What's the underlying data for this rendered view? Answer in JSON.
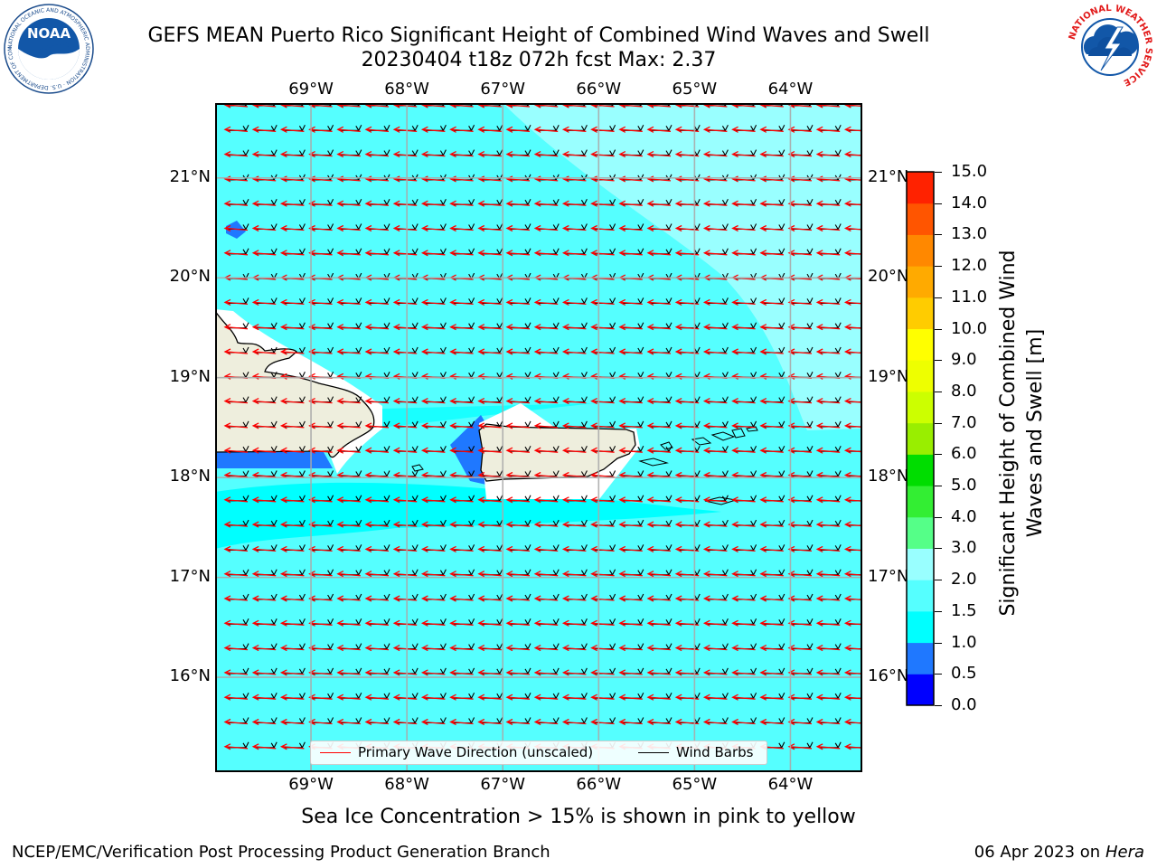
{
  "title": {
    "line1": "GEFS MEAN Puerto Rico Significant Height of Combined Wind Waves and Swell",
    "line2": "20230404 t18z 072h fcst   Max: 2.37"
  },
  "map": {
    "lon_labels": [
      "69°W",
      "68°W",
      "67°W",
      "66°W",
      "65°W",
      "64°W"
    ],
    "lat_labels": [
      "21°N",
      "20°N",
      "19°N",
      "18°N",
      "17°N",
      "16°N"
    ],
    "lon_range": [
      -70.0,
      -63.25
    ],
    "lat_range": [
      15.05,
      21.75
    ],
    "ocean_color": "#55ffff",
    "land_color": "#eeeedd"
  },
  "colorbar": {
    "tick_labels": [
      "15.0",
      "14.0",
      "13.0",
      "12.0",
      "11.0",
      "10.0",
      "9.0",
      "8.0",
      "7.0",
      "6.0",
      "5.0",
      "4.0",
      "3.0",
      "2.0",
      "1.5",
      "1.0",
      "0.5",
      "0.0"
    ],
    "levels": [
      0.0,
      0.5,
      1.0,
      1.5,
      2.0,
      3.0,
      4.0,
      5.0,
      6.0,
      7.0,
      8.0,
      9.0,
      10.0,
      11.0,
      12.0,
      13.0,
      14.0,
      15.0
    ],
    "colors": [
      "#0000ff",
      "#1f78ff",
      "#00ffff",
      "#55ffff",
      "#99ffff",
      "#55ff88",
      "#33ee33",
      "#00dd00",
      "#99ee00",
      "#ccff00",
      "#eeff00",
      "#ffff00",
      "#ffcc00",
      "#ffaa00",
      "#ff8800",
      "#ff5500",
      "#ff2200"
    ],
    "label": "Significant Height of Combined Wind Waves and Swell [m]"
  },
  "legend": {
    "wave_label": "Primary Wave Direction (unscaled)",
    "wave_color": "#ff0000",
    "barb_label": "Wind Barbs",
    "barb_color": "#000000"
  },
  "subnote": "Sea Ice Concentration > 15% is shown in pink to yellow",
  "footer": {
    "left": "NCEP/EMC/Verification Post Processing Product Generation Branch",
    "right_date": "06 Apr 2023 on ",
    "right_host": "Hera"
  },
  "logos": {
    "noaa_text": "NOAA",
    "noaa_ring": "NATIONAL OCEANIC AND ATMOSPHERIC ADMINISTRATION · U.S. DEPARTMENT OF COMMERCE",
    "nws_ring": "NATIONAL WEATHER SERVICE"
  }
}
